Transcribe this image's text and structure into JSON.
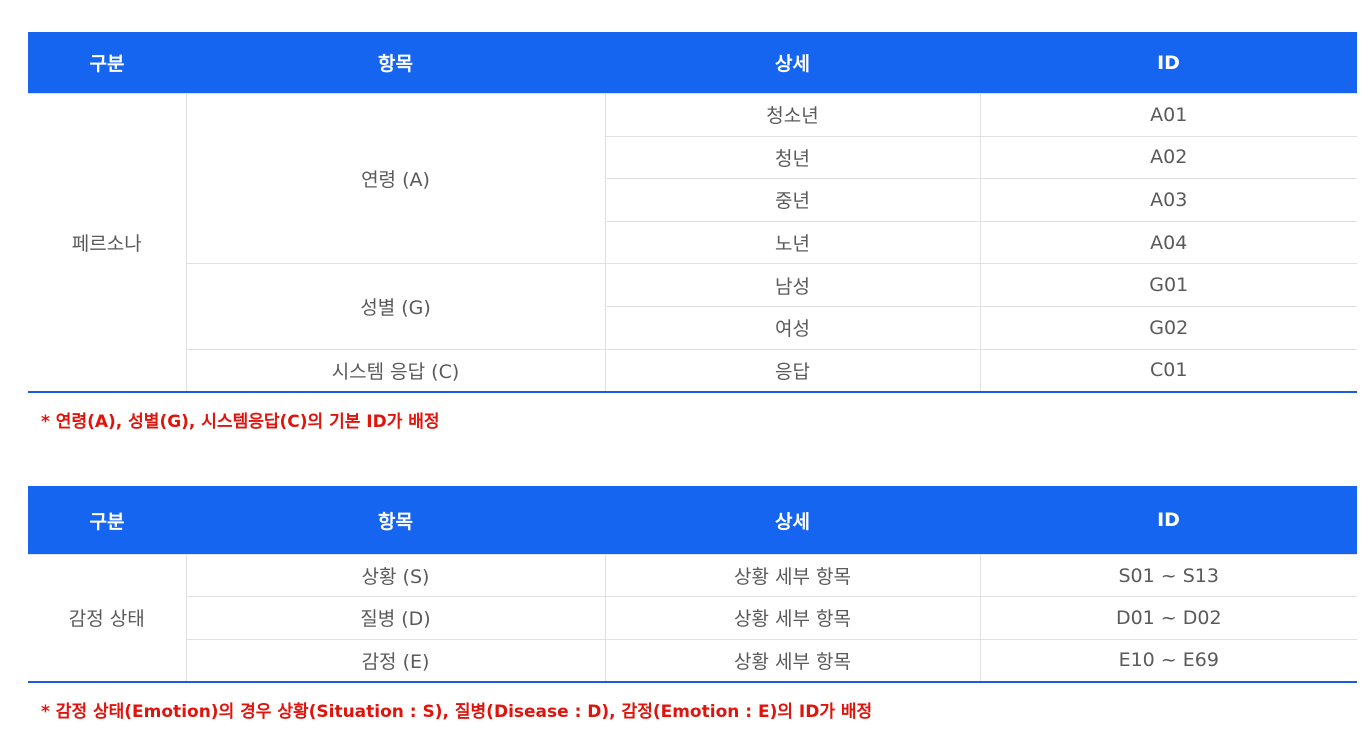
{
  "table1": {
    "headers": [
      "구분",
      "항목",
      "상세",
      "ID"
    ],
    "category": "페르소나",
    "groups": [
      {
        "item": "연령 (A)",
        "rows": [
          {
            "detail": "청소년",
            "id": "A01"
          },
          {
            "detail": "청년",
            "id": "A02"
          },
          {
            "detail": "중년",
            "id": "A03"
          },
          {
            "detail": "노년",
            "id": "A04"
          }
        ]
      },
      {
        "item": "성별 (G)",
        "rows": [
          {
            "detail": "남성",
            "id": "G01"
          },
          {
            "detail": "여성",
            "id": "G02"
          }
        ]
      },
      {
        "item": "시스템 응답 (C)",
        "rows": [
          {
            "detail": "응답",
            "id": "C01"
          }
        ]
      }
    ],
    "note": "* 연령(A), 성별(G), 시스템응답(C)의 기본 ID가 배정"
  },
  "table2": {
    "headers": [
      "구분",
      "항목",
      "상세",
      "ID"
    ],
    "category": "감정 상태",
    "rows": [
      {
        "item": "상황 (S)",
        "detail": "상황 세부 항목",
        "id": "S01 ~ S13"
      },
      {
        "item": "질병 (D)",
        "detail": "상황 세부 항목",
        "id": "D01 ~ D02"
      },
      {
        "item": "감정 (E)",
        "detail": "상황 세부 항목",
        "id": "E10 ~ E69"
      }
    ],
    "note": "* 감정 상태(Emotion)의 경우 상황(Situation : S), 질병(Disease : D), 감정(Emotion : E)의 ID가 배정"
  },
  "colors": {
    "header_bg": "#1565f0",
    "note": "#e0140c",
    "border": "#1a5ae6"
  }
}
